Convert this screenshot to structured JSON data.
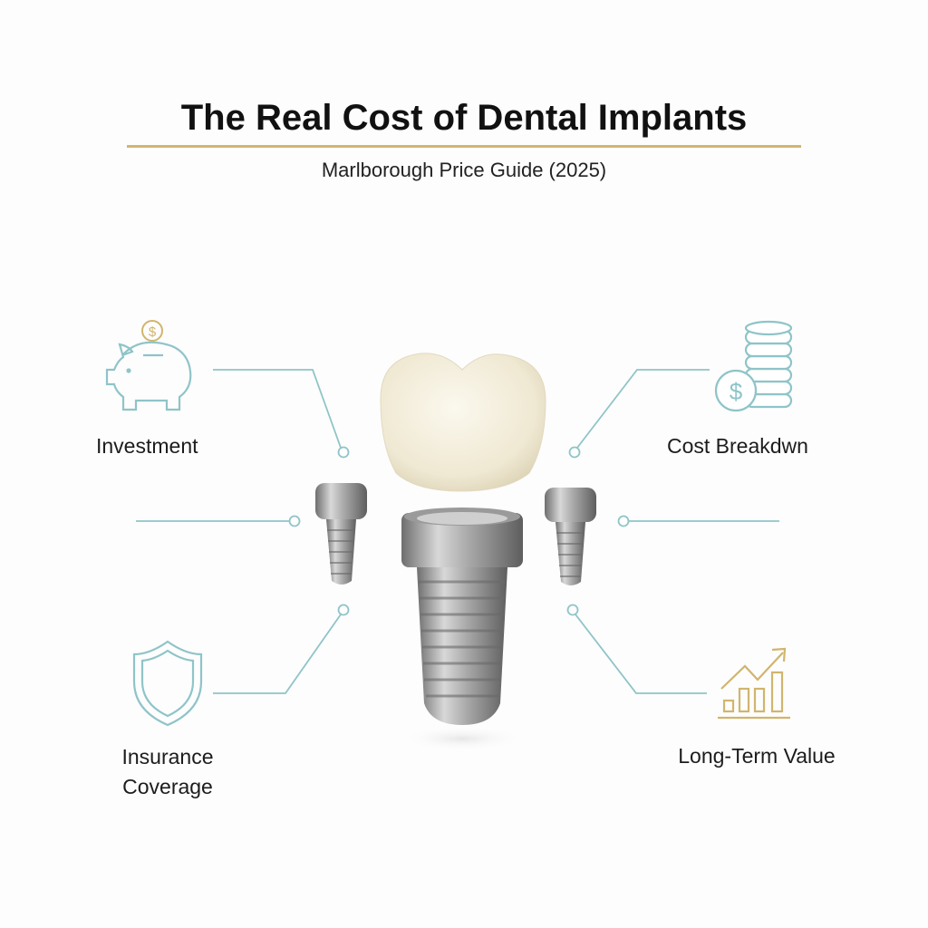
{
  "header": {
    "title": "The Real Cost of Dental Implants",
    "subtitle": "Marlborough Price Guide (2025)"
  },
  "features": [
    {
      "label": "Investment",
      "icon": "piggy-bank-icon"
    },
    {
      "label": "Cost Breakdwn",
      "icon": "coins-dollar-icon"
    },
    {
      "label": "Insurance Coverage",
      "label_lines": [
        "Insurance",
        "Coverage"
      ],
      "icon": "shield-icon"
    },
    {
      "label": "Long-Term Value",
      "icon": "growth-chart-icon"
    }
  ],
  "colors": {
    "accent_gold": "#d1b56e",
    "accent_teal": "#8fc4c8",
    "text": "#1a1a1a"
  }
}
